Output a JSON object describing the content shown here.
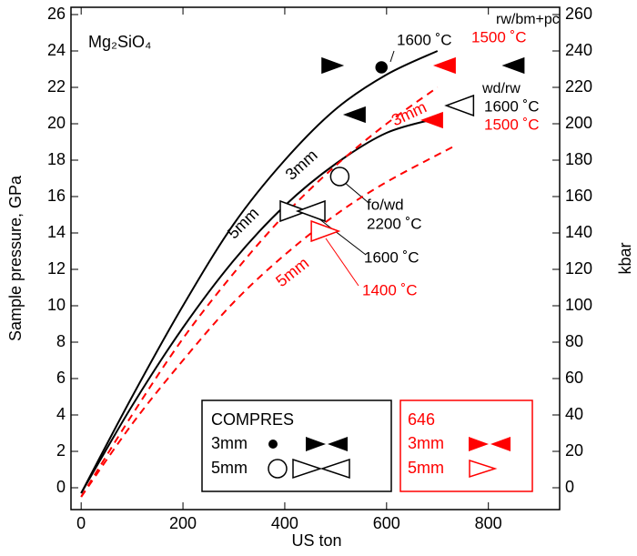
{
  "chart_data": {
    "type": "line",
    "title": "Mg₂SiO₄",
    "xlabel": "US ton",
    "ylabel": "Sample pressure, GPa",
    "y2label": "kbar",
    "xlim": [
      -20,
      940
    ],
    "ylim": [
      -1.2,
      26.4
    ],
    "y2lim": [
      -12,
      264
    ],
    "xticks": [
      0,
      200,
      400,
      600,
      800
    ],
    "yticks": [
      0,
      2,
      4,
      6,
      8,
      10,
      12,
      14,
      16,
      18,
      20,
      22,
      24,
      26
    ],
    "y2ticks": [
      0,
      20,
      40,
      60,
      80,
      100,
      120,
      140,
      160,
      180,
      200,
      220,
      240,
      260
    ],
    "series": [
      {
        "name": "3mm",
        "color": "#000000",
        "dashed": false,
        "x": [
          0,
          100,
          200,
          300,
          400,
          500,
          600,
          700
        ],
        "values": [
          -0.3,
          5,
          10,
          14.5,
          18,
          20.8,
          22.7,
          24
        ]
      },
      {
        "name": "5mm",
        "color": "#000000",
        "dashed": false,
        "x": [
          0,
          100,
          200,
          300,
          400,
          500,
          600,
          700
        ],
        "values": [
          -0.3,
          4.5,
          8.8,
          12.5,
          15.5,
          17.8,
          19.5,
          20.3
        ]
      },
      {
        "name": "3mm",
        "color": "#ff0000",
        "dashed": true,
        "x": [
          0,
          100,
          200,
          300,
          400,
          500,
          600,
          700
        ],
        "values": [
          -0.5,
          4,
          8.2,
          11.8,
          15,
          17.7,
          20,
          22
        ]
      },
      {
        "name": "5mm",
        "color": "#ff0000",
        "dashed": true,
        "x": [
          0,
          100,
          200,
          300,
          400,
          500,
          600,
          735
        ],
        "values": [
          -0.5,
          3.5,
          7,
          10.2,
          12.8,
          15,
          16.8,
          18.8
        ]
      }
    ],
    "markers": [
      {
        "shape": "right",
        "filled": true,
        "color": "#000000",
        "x": 493,
        "y": 23.2
      },
      {
        "shape": "circle",
        "filled": true,
        "color": "#000000",
        "x": 590,
        "y": 23.1
      },
      {
        "shape": "left",
        "filled": true,
        "color": "#ff0000",
        "x": 715,
        "y": 23.2
      },
      {
        "shape": "left",
        "filled": true,
        "color": "#000000",
        "x": 850,
        "y": 23.2
      },
      {
        "shape": "left",
        "filled": true,
        "color": "#000000",
        "x": 538,
        "y": 20.5
      },
      {
        "shape": "left",
        "filled": false,
        "color": "#000000",
        "x": 744,
        "y": 21
      },
      {
        "shape": "left",
        "filled": true,
        "color": "#ff0000",
        "x": 690,
        "y": 20.2
      },
      {
        "shape": "circle",
        "filled": false,
        "color": "#000000",
        "x": 508,
        "y": 17.1
      },
      {
        "shape": "right",
        "filled": false,
        "color": "#000000",
        "x": 418,
        "y": 15.2
      },
      {
        "shape": "left",
        "filled": false,
        "color": "#000000",
        "x": 452,
        "y": 15.2
      },
      {
        "shape": "right",
        "filled": false,
        "color": "#ff0000",
        "x": 479,
        "y": 14.1
      }
    ],
    "annotations": [
      {
        "text": "1600 ˚C",
        "color": "#000000"
      },
      {
        "text": "rw/bm+pc",
        "color": "#000000"
      },
      {
        "text": "1500 ˚C",
        "color": "#ff0000"
      },
      {
        "text": "wd/rw",
        "color": "#000000"
      },
      {
        "text": "1600 ˚C",
        "color": "#000000"
      },
      {
        "text": "1500 ˚C",
        "color": "#ff0000"
      },
      {
        "text": "fo/wd",
        "color": "#000000"
      },
      {
        "text": "2200 ˚C",
        "color": "#000000"
      },
      {
        "text": "1600 ˚C",
        "color": "#000000"
      },
      {
        "text": "1400 ˚C",
        "color": "#ff0000"
      }
    ],
    "legends": [
      {
        "title": "COMPRES",
        "color": "#000000",
        "entries": [
          "3mm",
          "5mm"
        ]
      },
      {
        "title": "646",
        "color": "#ff0000",
        "entries": [
          "3mm",
          "5mm"
        ]
      }
    ]
  }
}
